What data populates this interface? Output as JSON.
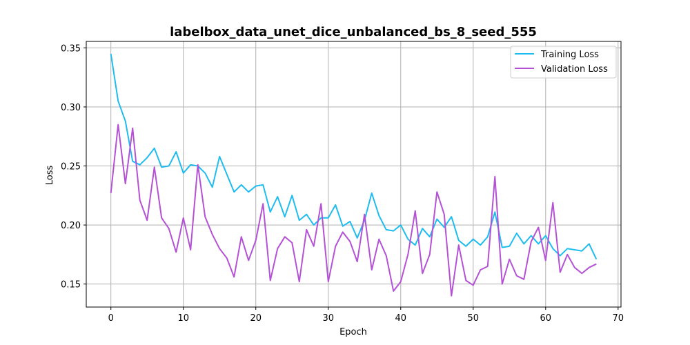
{
  "chart_data": {
    "type": "line",
    "title": "labelbox_data_unet_dice_unbalanced_bs_8_seed_555",
    "xlabel": "Epoch",
    "ylabel": "Loss",
    "xlim": [
      -3.4,
      70.4
    ],
    "ylim": [
      0.1305,
      0.3555
    ],
    "xticks": [
      0,
      10,
      20,
      30,
      40,
      50,
      60,
      70
    ],
    "yticks": [
      0.15,
      0.2,
      0.25,
      0.3,
      0.35
    ],
    "ytick_labels": [
      "0.15",
      "0.20",
      "0.25",
      "0.30",
      "0.35"
    ],
    "grid": true,
    "legend_position": "top-right",
    "series": [
      {
        "name": "Training Loss",
        "color": "#1ebcf0",
        "values": [
          0.345,
          0.305,
          0.288,
          0.254,
          0.251,
          0.257,
          0.265,
          0.249,
          0.25,
          0.262,
          0.244,
          0.251,
          0.25,
          0.244,
          0.232,
          0.258,
          0.243,
          0.228,
          0.234,
          0.228,
          0.233,
          0.234,
          0.211,
          0.224,
          0.207,
          0.225,
          0.204,
          0.209,
          0.2,
          0.206,
          0.206,
          0.217,
          0.199,
          0.203,
          0.189,
          0.204,
          0.227,
          0.208,
          0.196,
          0.195,
          0.2,
          0.188,
          0.183,
          0.197,
          0.19,
          0.205,
          0.198,
          0.207,
          0.187,
          0.182,
          0.188,
          0.183,
          0.19,
          0.211,
          0.181,
          0.182,
          0.193,
          0.184,
          0.191,
          0.184,
          0.191,
          0.18,
          0.174,
          0.18,
          0.179,
          0.178,
          0.184,
          0.171
        ]
      },
      {
        "name": "Validation Loss",
        "color": "#b451d6",
        "values": [
          0.227,
          0.285,
          0.235,
          0.282,
          0.221,
          0.204,
          0.249,
          0.206,
          0.197,
          0.177,
          0.206,
          0.179,
          0.251,
          0.207,
          0.192,
          0.18,
          0.172,
          0.156,
          0.19,
          0.17,
          0.187,
          0.218,
          0.153,
          0.18,
          0.19,
          0.185,
          0.152,
          0.196,
          0.182,
          0.218,
          0.152,
          0.182,
          0.194,
          0.186,
          0.169,
          0.209,
          0.162,
          0.188,
          0.174,
          0.144,
          0.152,
          0.175,
          0.212,
          0.159,
          0.175,
          0.228,
          0.209,
          0.14,
          0.183,
          0.153,
          0.149,
          0.162,
          0.165,
          0.241,
          0.15,
          0.171,
          0.157,
          0.154,
          0.186,
          0.198,
          0.17,
          0.219,
          0.16,
          0.175,
          0.164,
          0.159,
          0.164,
          0.167
        ]
      }
    ]
  }
}
